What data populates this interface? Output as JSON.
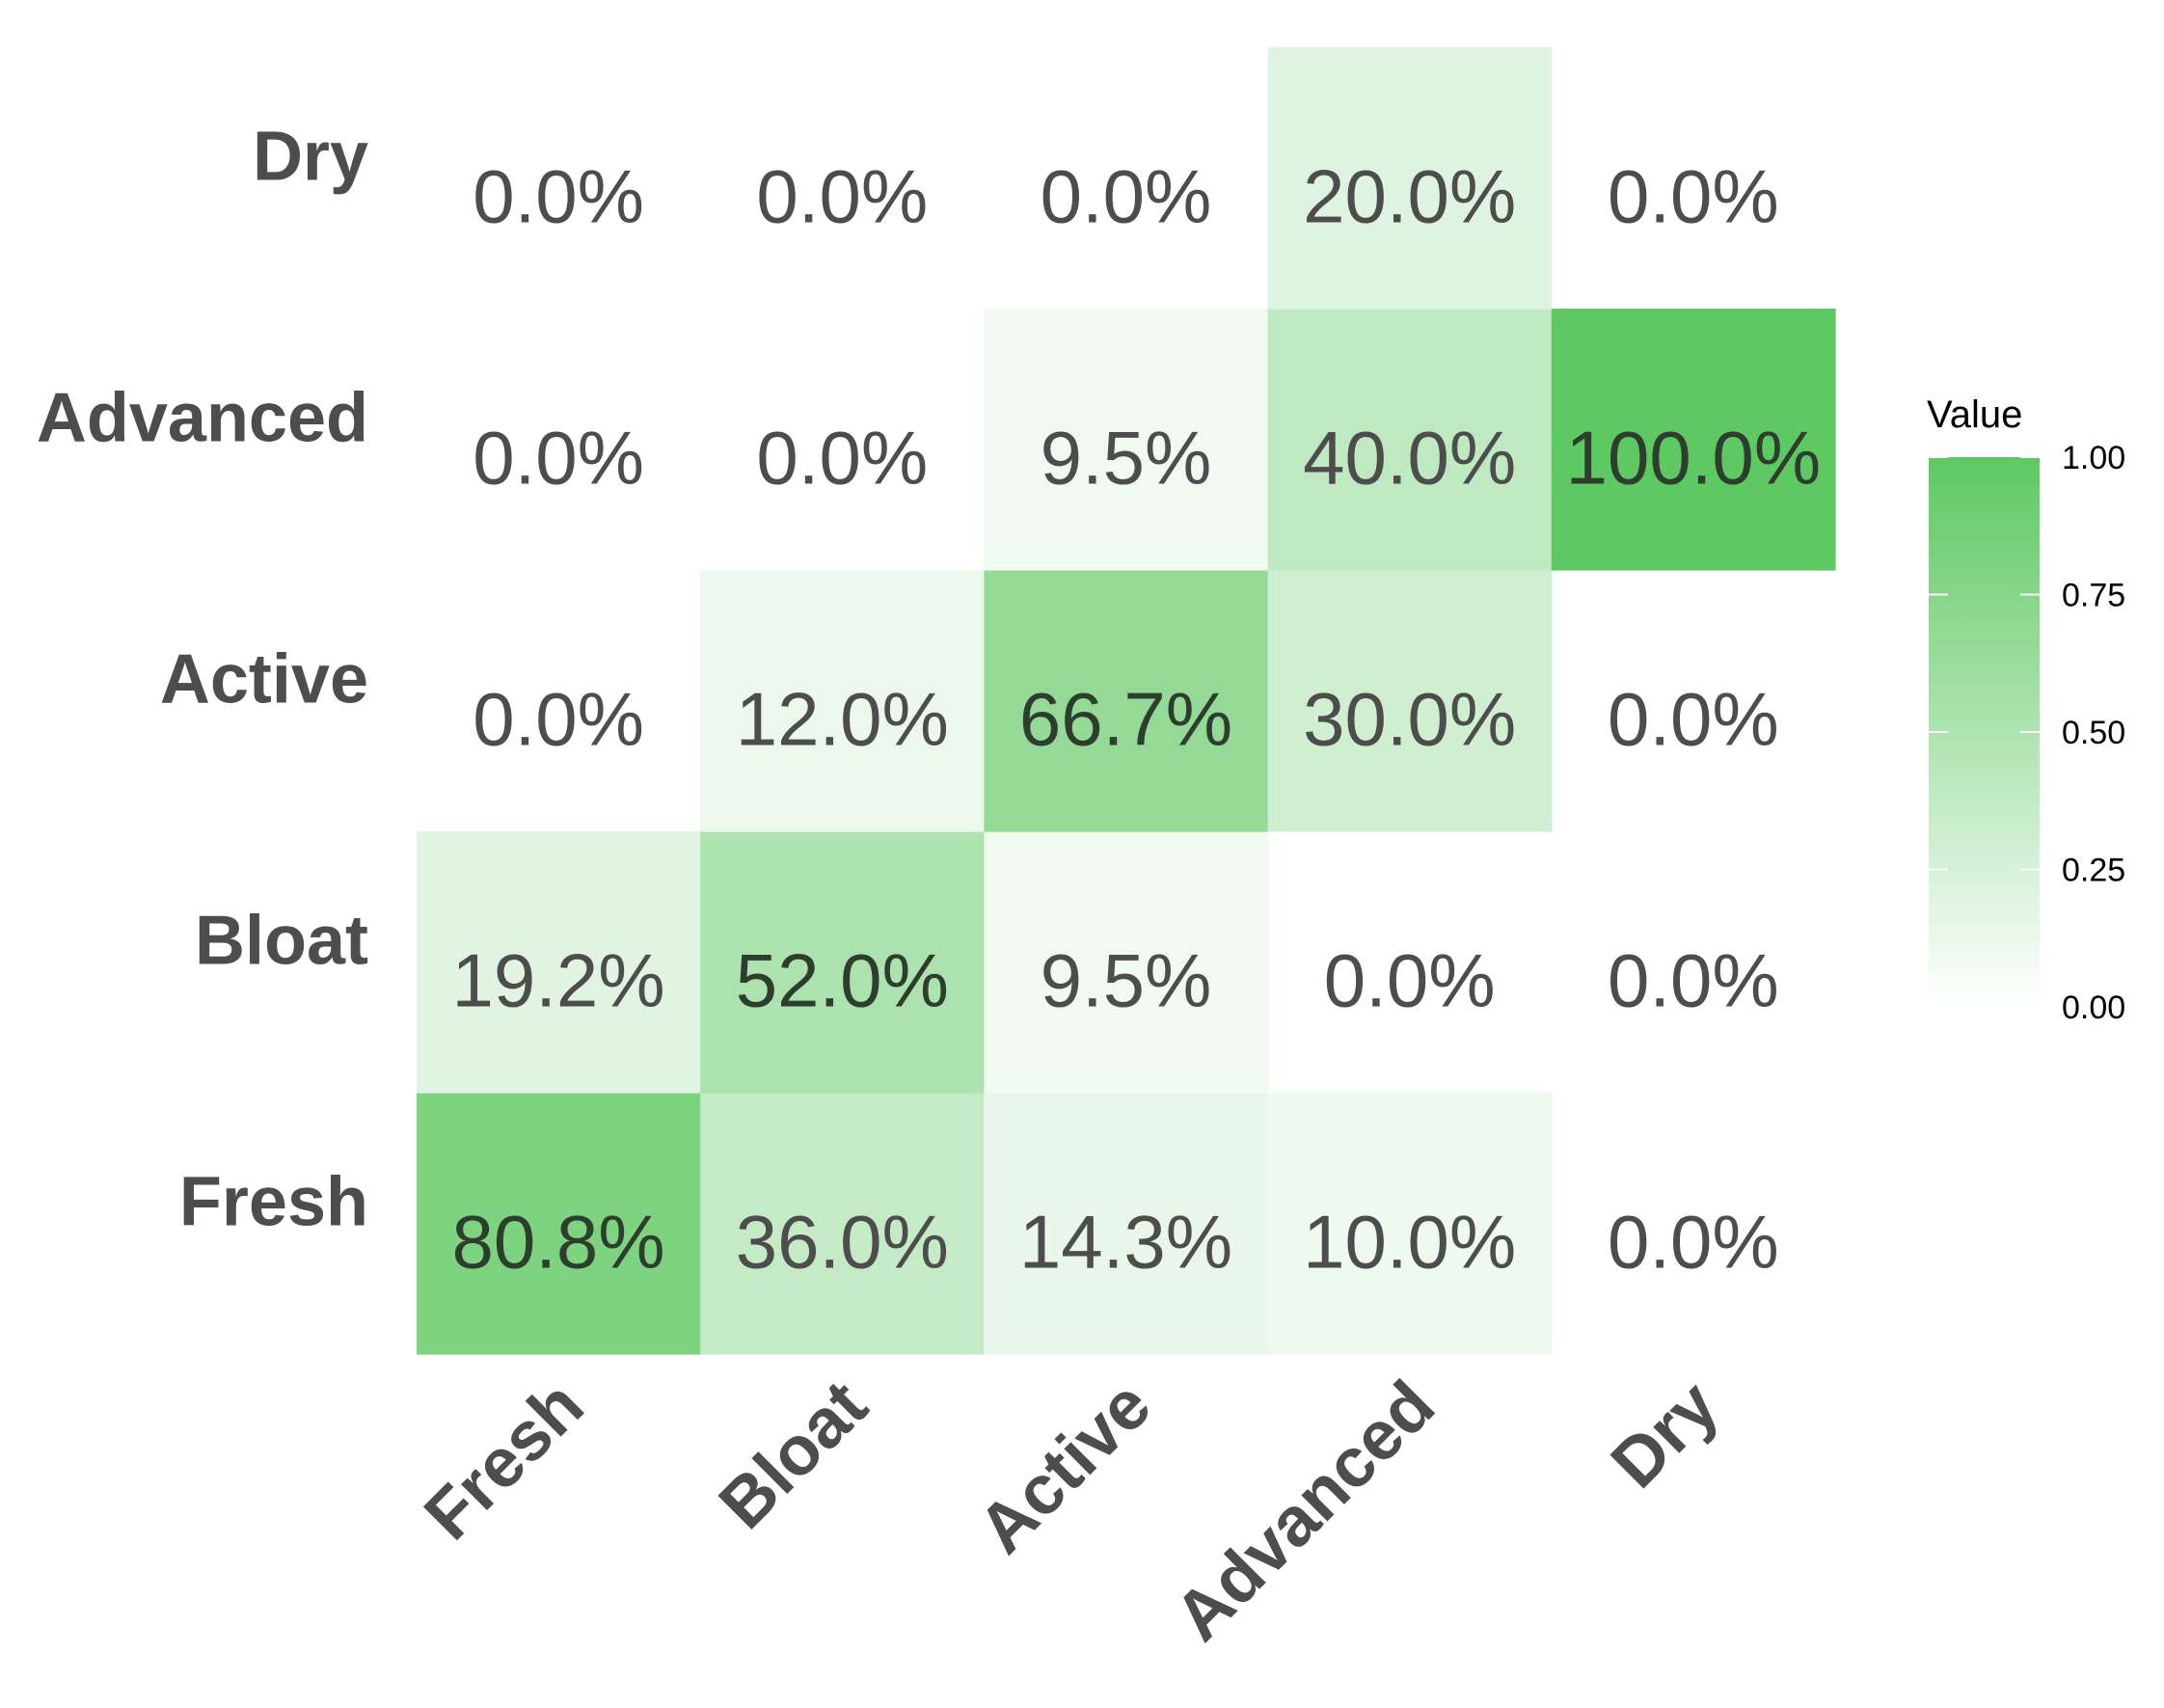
{
  "chart_data": {
    "type": "heatmap",
    "x_categories": [
      "Fresh",
      "Bloat",
      "Active",
      "Advanced",
      "Dry"
    ],
    "y_categories": [
      "Fresh",
      "Bloat",
      "Active",
      "Advanced",
      "Dry"
    ],
    "values": [
      [
        0.808,
        0.36,
        0.143,
        0.1,
        0.0
      ],
      [
        0.192,
        0.52,
        0.095,
        0.0,
        0.0
      ],
      [
        0.0,
        0.12,
        0.667,
        0.3,
        0.0
      ],
      [
        0.0,
        0.0,
        0.095,
        0.4,
        1.0
      ],
      [
        0.0,
        0.0,
        0.0,
        0.2,
        0.0
      ]
    ],
    "labels": [
      [
        "80.8%",
        "36.0%",
        "14.3%",
        "10.0%",
        "0.0%"
      ],
      [
        "19.2%",
        "52.0%",
        "9.5%",
        "0.0%",
        "0.0%"
      ],
      [
        "0.0%",
        "12.0%",
        "66.7%",
        "30.0%",
        "0.0%"
      ],
      [
        "0.0%",
        "0.0%",
        "9.5%",
        "40.0%",
        "100.0%"
      ],
      [
        "0.0%",
        "0.0%",
        "0.0%",
        "20.0%",
        "0.0%"
      ]
    ],
    "xlabel": "",
    "ylabel": "",
    "legend": {
      "title": "Value",
      "ticks": [
        "0.00",
        "0.25",
        "0.50",
        "0.75",
        "1.00"
      ],
      "range": [
        0,
        1
      ],
      "low_color": "#ffffff",
      "high_color": "#5ec862",
      "placement": "right"
    },
    "grid": false
  },
  "colors": {
    "label_dark": "#2e3e2e",
    "label_light": "#4d4d4d",
    "axis_text": "#4d4d4d"
  }
}
